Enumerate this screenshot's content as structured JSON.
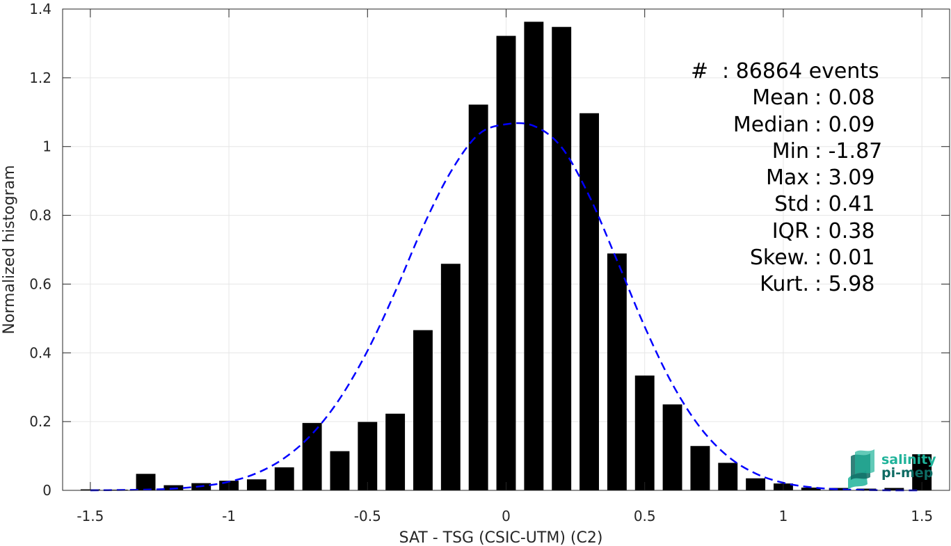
{
  "chart_data": {
    "type": "bar",
    "xlabel": "SAT - TSG (CSIC-UTM) (C2)",
    "ylabel": "Normalized histogram",
    "xlim": [
      -1.6,
      1.6
    ],
    "ylim": [
      0,
      1.4
    ],
    "grid": true,
    "xticks": [
      -1.5,
      -1,
      -0.5,
      0,
      0.5,
      1,
      1.5
    ],
    "xtick_labels": [
      "-1.5",
      "-1",
      "-0.5",
      "0",
      "0.5",
      "1",
      "1.5"
    ],
    "yticks": [
      0,
      0.2,
      0.4,
      0.6,
      0.8,
      1,
      1.2,
      1.4
    ],
    "ytick_labels": [
      "0",
      "0.2",
      "0.4",
      "0.6",
      "0.8",
      "1",
      "1.2",
      "1.4"
    ],
    "bar_width": 0.07,
    "bar_color": "#000000",
    "bars": {
      "x": [
        -1.5,
        -1.4,
        -1.3,
        -1.2,
        -1.1,
        -1.0,
        -0.9,
        -0.8,
        -0.7,
        -0.6,
        -0.5,
        -0.4,
        -0.3,
        -0.2,
        -0.1,
        0.0,
        0.1,
        0.2,
        0.3,
        0.4,
        0.5,
        0.6,
        0.7,
        0.8,
        0.9,
        1.0,
        1.1,
        1.2,
        1.3,
        1.4,
        1.5
      ],
      "values": [
        0.003,
        0.002,
        0.048,
        0.015,
        0.021,
        0.028,
        0.032,
        0.067,
        0.196,
        0.114,
        0.199,
        0.223,
        0.466,
        0.659,
        1.122,
        1.322,
        1.363,
        1.348,
        1.097,
        0.689,
        0.334,
        0.25,
        0.129,
        0.08,
        0.035,
        0.02,
        0.008,
        0.007,
        0.005,
        0.007,
        0.105
      ]
    },
    "series": [
      {
        "style": "dashed",
        "color": "#0000ff",
        "x": [
          -1.5,
          -1.4,
          -1.3,
          -1.2,
          -1.1,
          -1.0,
          -0.9,
          -0.8,
          -0.7,
          -0.6,
          -0.5,
          -0.4,
          -0.3,
          -0.2,
          -0.1,
          0.0,
          0.1,
          0.2,
          0.3,
          0.4,
          0.5,
          0.6,
          0.7,
          0.8,
          0.9,
          1.0,
          1.1,
          1.2,
          1.3,
          1.4,
          1.5
        ],
        "values": [
          0.0,
          0.001,
          0.002,
          0.005,
          0.012,
          0.025,
          0.05,
          0.094,
          0.164,
          0.267,
          0.406,
          0.578,
          0.766,
          0.926,
          1.035,
          1.065,
          1.06,
          0.998,
          0.856,
          0.669,
          0.476,
          0.309,
          0.183,
          0.099,
          0.049,
          0.022,
          0.009,
          0.003,
          0.001,
          0.0,
          0.0
        ]
      }
    ],
    "annotations": [
      {
        "label": "#",
        "value": ": 86864 events"
      },
      {
        "label": "Mean",
        "value": ": 0.08"
      },
      {
        "label": "Median",
        "value": ": 0.09"
      },
      {
        "label": "Min",
        "value": ": -1.87"
      },
      {
        "label": "Max",
        "value": ": 3.09"
      },
      {
        "label": "Std",
        "value": ": 0.41"
      },
      {
        "label": "IQR",
        "value": ": 0.38"
      },
      {
        "label": "Skew.",
        "value": ": 0.01"
      },
      {
        "label": "Kurt.",
        "value": ": 5.98"
      }
    ]
  },
  "logo": {
    "line1": "salinity",
    "line2": "pi-mep",
    "colors": [
      "#1fb39a",
      "#0e6b63"
    ]
  }
}
